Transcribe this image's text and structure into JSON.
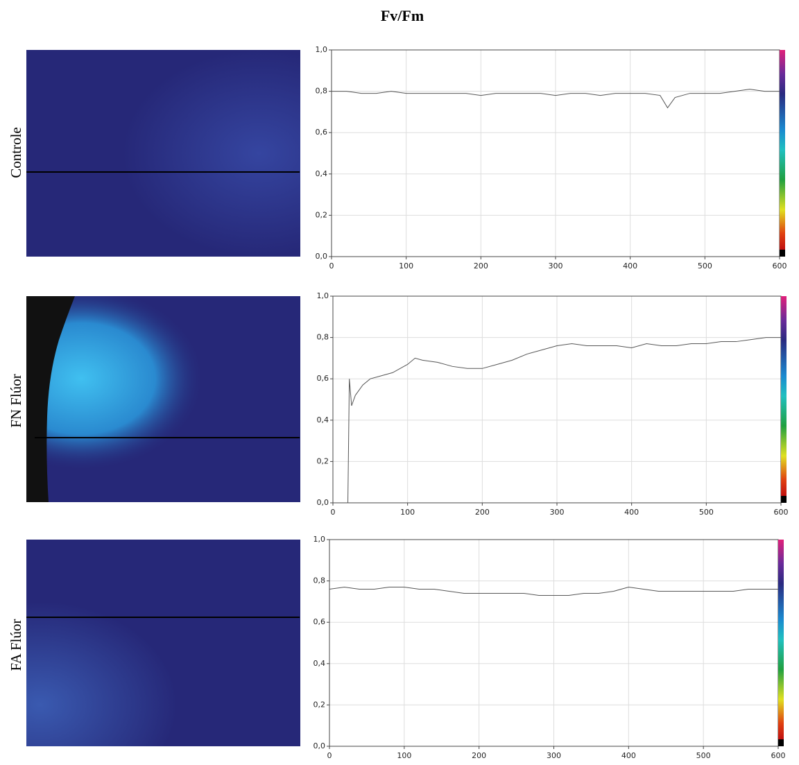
{
  "title": "Fv/Fm",
  "chart_data": [
    {
      "type": "line",
      "label": "Controle",
      "color": "#555555",
      "grid": true,
      "xlim": [
        0,
        600
      ],
      "ylim": [
        0,
        1
      ],
      "xticks": [
        0,
        100,
        200,
        300,
        400,
        500,
        600
      ],
      "yticks": [
        {
          "value": 0,
          "label": "0,0"
        },
        {
          "value": 0.2,
          "label": "0,2"
        },
        {
          "value": 0.4,
          "label": "0,4"
        },
        {
          "value": 0.6,
          "label": "0,6"
        },
        {
          "value": 0.8,
          "label": "0,8"
        },
        {
          "value": 1,
          "label": "1,0"
        }
      ],
      "x": [
        0,
        20,
        40,
        60,
        80,
        100,
        120,
        140,
        160,
        180,
        200,
        220,
        240,
        260,
        280,
        300,
        320,
        340,
        360,
        380,
        400,
        420,
        440,
        450,
        460,
        480,
        500,
        520,
        540,
        560,
        580,
        600
      ],
      "values": [
        0.8,
        0.8,
        0.79,
        0.79,
        0.8,
        0.79,
        0.79,
        0.79,
        0.79,
        0.79,
        0.78,
        0.79,
        0.79,
        0.79,
        0.79,
        0.78,
        0.79,
        0.79,
        0.78,
        0.79,
        0.79,
        0.79,
        0.78,
        0.72,
        0.77,
        0.79,
        0.79,
        0.79,
        0.8,
        0.81,
        0.8,
        0.8
      ]
    },
    {
      "type": "line",
      "label": "FN Flúor",
      "color": "#555555",
      "grid": true,
      "xlim": [
        0,
        600
      ],
      "ylim": [
        0,
        1
      ],
      "xticks": [
        0,
        100,
        200,
        300,
        400,
        500,
        600
      ],
      "yticks": [
        {
          "value": 0,
          "label": "0,0"
        },
        {
          "value": 0.2,
          "label": "0,2"
        },
        {
          "value": 0.4,
          "label": "0,4"
        },
        {
          "value": 0.6,
          "label": "0,6"
        },
        {
          "value": 0.8,
          "label": "0,8"
        },
        {
          "value": 1,
          "label": "1,0"
        }
      ],
      "x": [
        20,
        22,
        25,
        30,
        40,
        50,
        60,
        80,
        100,
        110,
        120,
        140,
        160,
        180,
        200,
        220,
        240,
        260,
        280,
        300,
        320,
        340,
        360,
        380,
        400,
        420,
        440,
        460,
        480,
        500,
        520,
        540,
        560,
        580,
        600
      ],
      "values": [
        0,
        0.6,
        0.47,
        0.52,
        0.57,
        0.6,
        0.61,
        0.63,
        0.67,
        0.7,
        0.69,
        0.68,
        0.66,
        0.65,
        0.65,
        0.67,
        0.69,
        0.72,
        0.74,
        0.76,
        0.77,
        0.76,
        0.76,
        0.76,
        0.75,
        0.77,
        0.76,
        0.76,
        0.77,
        0.77,
        0.78,
        0.78,
        0.79,
        0.8,
        0.8
      ]
    },
    {
      "type": "line",
      "label": "FA Flúor",
      "color": "#555555",
      "grid": true,
      "xlim": [
        0,
        600
      ],
      "ylim": [
        0,
        1
      ],
      "xticks": [
        0,
        100,
        200,
        300,
        400,
        500,
        600
      ],
      "yticks": [
        {
          "value": 0,
          "label": "0,0"
        },
        {
          "value": 0.2,
          "label": "0,2"
        },
        {
          "value": 0.4,
          "label": "0,4"
        },
        {
          "value": 0.6,
          "label": "0,6"
        },
        {
          "value": 0.8,
          "label": "0,8"
        },
        {
          "value": 1,
          "label": "1,0"
        }
      ],
      "x": [
        0,
        20,
        40,
        60,
        80,
        100,
        120,
        140,
        160,
        180,
        200,
        220,
        240,
        260,
        280,
        300,
        320,
        340,
        360,
        380,
        400,
        420,
        440,
        460,
        480,
        500,
        520,
        540,
        560,
        580,
        600
      ],
      "values": [
        0.76,
        0.77,
        0.76,
        0.76,
        0.77,
        0.77,
        0.76,
        0.76,
        0.75,
        0.74,
        0.74,
        0.74,
        0.74,
        0.74,
        0.73,
        0.73,
        0.73,
        0.74,
        0.74,
        0.75,
        0.77,
        0.76,
        0.75,
        0.75,
        0.75,
        0.75,
        0.75,
        0.75,
        0.76,
        0.76,
        0.76
      ]
    }
  ]
}
